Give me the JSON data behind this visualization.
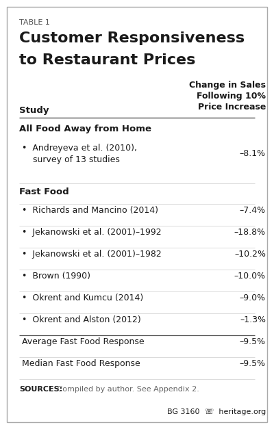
{
  "table_label": "TABLE 1",
  "title_line1": "Customer Responsiveness",
  "title_line2": "to Restaurant Prices",
  "col1_header": "Study",
  "col2_header": "Change in Sales\nFollowing 10%\nPrice Increase",
  "section1_header": "All Food Away from Home",
  "section2_header": "Fast Food",
  "section2_rows": [
    {
      "study": "•  Richards and Mancino (2014)",
      "value": "–7.4%"
    },
    {
      "study": "•  Jekanowski et al. (2001)–1992",
      "value": "–18.8%"
    },
    {
      "study": "•  Jekanowski et al. (2001)–1982",
      "value": "–10.2%"
    },
    {
      "study": "•  Brown (1990)",
      "value": "–10.0%"
    },
    {
      "study": "•  Okrent and Kumcu (2014)",
      "value": "–9.0%"
    },
    {
      "study": "•  Okrent and Alston (2012)",
      "value": "–1.3%"
    }
  ],
  "summary_rows": [
    {
      "study": "Average Fast Food Response",
      "value": "–9.5%"
    },
    {
      "study": "Median Fast Food Response",
      "value": "–9.5%"
    }
  ],
  "sources_bold": "SOURCES:",
  "sources_text": " Compiled by author. See Appendix 2.",
  "footer": "BG 3160  ☏  heritage.org",
  "bg_color": "#ffffff",
  "border_color": "#aaaaaa",
  "text_color": "#1a1a1a",
  "sources_text_color": "#666666",
  "line_color": "#cccccc",
  "header_line_color": "#555555"
}
